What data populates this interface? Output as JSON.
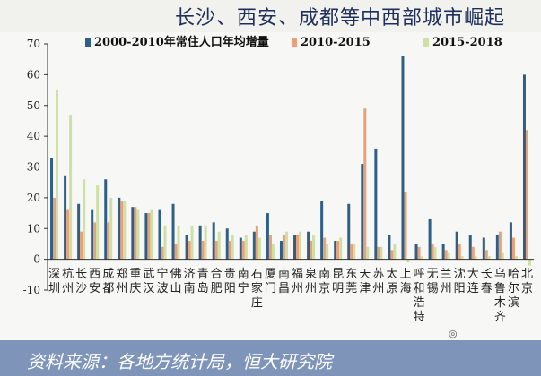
{
  "header": {
    "title": "长沙、西安、成都等中西部城市崛起"
  },
  "footer": {
    "source": "资料来源：各地方统计局，恒大研究院"
  },
  "colors": {
    "series1": "#2f5f86",
    "series2": "#e8a178",
    "series3": "#cfe0a6",
    "axis": "#333333",
    "title": "#1d2f5a",
    "footer_bg": "#7e94b8"
  },
  "chart_data": {
    "type": "bar",
    "ylim": [
      -10,
      70
    ],
    "yticks": [
      -10,
      0,
      10,
      20,
      30,
      40,
      50,
      60,
      70
    ],
    "grid": false,
    "legend_position": "top",
    "categories": [
      "深圳",
      "杭州",
      "长沙",
      "西安",
      "成都",
      "郑州",
      "重庆",
      "武汉",
      "宁波",
      "佛山",
      "济南",
      "青岛",
      "合肥",
      "贵阳",
      "南宁",
      "石家庄",
      "厦门",
      "南昌",
      "福州",
      "泉州",
      "南京",
      "昆明",
      "东莞",
      "天津",
      "苏州",
      "太原",
      "上海",
      "呼和浩特",
      "无锡",
      "兰州",
      "沈阳",
      "大连",
      "长春",
      "乌鲁木齐",
      "哈尔滨",
      "北京"
    ],
    "series": [
      {
        "name": "2000-2010年常住人口年均增量",
        "values": [
          33,
          27,
          18,
          16,
          26,
          20,
          17,
          15,
          16,
          18,
          8,
          11,
          12,
          10,
          7,
          9,
          15,
          6,
          8,
          9,
          19,
          6,
          18,
          31,
          36,
          8,
          66,
          5,
          13,
          5,
          9,
          8,
          7,
          8,
          12,
          60
        ]
      },
      {
        "name": "2010-2015",
        "values": [
          20,
          16,
          9,
          12,
          12,
          19,
          17,
          15,
          4,
          5,
          6,
          6,
          6,
          6,
          6,
          11,
          8,
          8,
          8,
          6,
          7,
          6,
          5,
          49,
          4,
          3,
          22,
          4,
          5,
          3,
          5,
          4,
          3,
          9,
          7,
          42
        ]
      },
      {
        "name": "2015-2018",
        "values": [
          55,
          47,
          26,
          24,
          20,
          19,
          16,
          16,
          11,
          11,
          11,
          11,
          9,
          8,
          8,
          7,
          5,
          9,
          9,
          8,
          5,
          7,
          5,
          4,
          4,
          5,
          -1,
          1,
          4,
          2,
          1,
          1,
          1,
          2,
          1,
          -2
        ]
      }
    ]
  }
}
